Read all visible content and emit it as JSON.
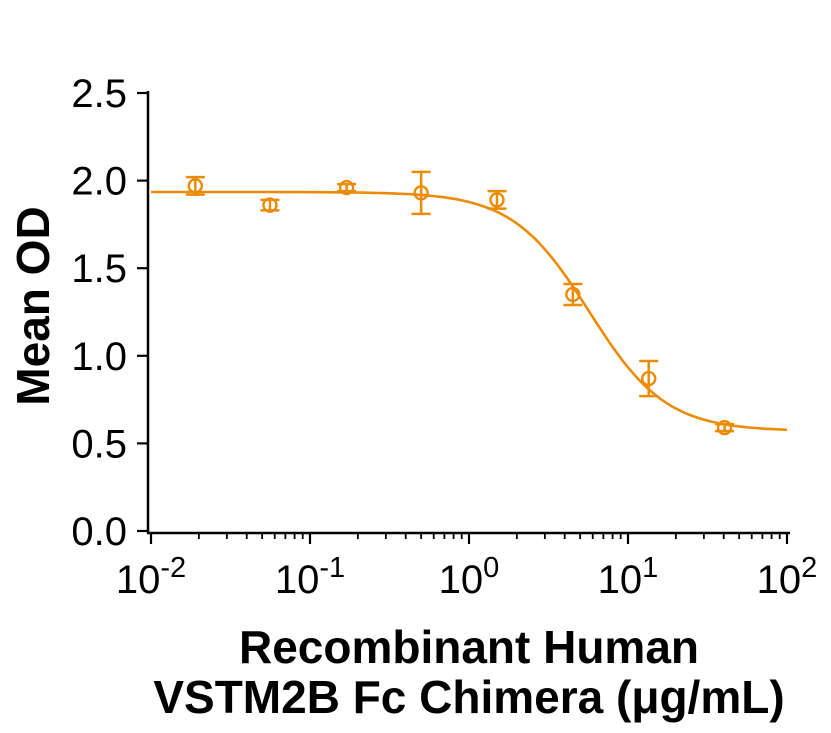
{
  "chart_data": {
    "type": "scatter",
    "title": "",
    "ylabel": "Mean OD",
    "xlabel_line1": "Recombinant Human",
    "xlabel_line2": "VSTM2B Fc Chimera (μg/mL)",
    "x_scale": "log10",
    "xlim": [
      0.01,
      100
    ],
    "ylim": [
      0.0,
      2.5
    ],
    "grid": false,
    "y_ticks": [
      "0.0",
      "0.5",
      "1.0",
      "1.5",
      "2.0",
      "2.5"
    ],
    "x_tick_base": "10",
    "x_tick_exponents": [
      -2,
      -1,
      0,
      1,
      2
    ],
    "axis_color": "#000000",
    "series": [
      {
        "name": "Mean OD",
        "color": "#EC8B05",
        "marker": "open-circle",
        "points": [
          {
            "x": 0.019,
            "y": 1.97,
            "err": 0.05
          },
          {
            "x": 0.056,
            "y": 1.86,
            "err": 0.03
          },
          {
            "x": 0.17,
            "y": 1.96,
            "err": 0.02
          },
          {
            "x": 0.5,
            "y": 1.93,
            "err": 0.12
          },
          {
            "x": 1.5,
            "y": 1.89,
            "err": 0.05
          },
          {
            "x": 4.5,
            "y": 1.35,
            "err": 0.06
          },
          {
            "x": 13.5,
            "y": 0.87,
            "err": 0.1
          },
          {
            "x": 40.5,
            "y": 0.59,
            "err": 0.02
          }
        ]
      }
    ],
    "fit": {
      "type": "4PL",
      "top": 1.935,
      "bottom": 0.57,
      "ic50": 5.7,
      "hill": 1.8,
      "color": "#EC8B05"
    }
  }
}
